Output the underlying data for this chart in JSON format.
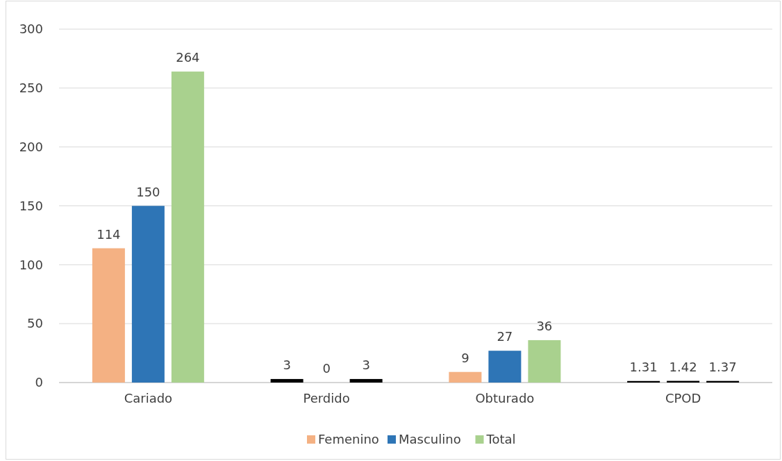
{
  "chart_data": {
    "type": "bar",
    "categories": [
      "Cariado",
      "Perdido",
      "Obturado",
      "CPOD"
    ],
    "series": [
      {
        "name": "Femenino",
        "color": "#f4b183",
        "colors": [
          "#f4b183",
          "#000000",
          "#f4b183",
          "#000000"
        ],
        "values": [
          114,
          3,
          9,
          1.31
        ]
      },
      {
        "name": "Masculino",
        "color": "#2e75b6",
        "colors": [
          "#2e75b6",
          "#000000",
          "#2e75b6",
          "#000000"
        ],
        "values": [
          150,
          0,
          27,
          1.42
        ]
      },
      {
        "name": "Total",
        "color": "#a9d18e",
        "colors": [
          "#a9d18e",
          "#000000",
          "#a9d18e",
          "#000000"
        ],
        "values": [
          264,
          3,
          36,
          1.37
        ]
      }
    ],
    "ylim": [
      0,
      300
    ],
    "yticks": [
      0,
      50,
      100,
      150,
      200,
      250,
      300
    ],
    "grid": "y",
    "data_labels": true,
    "legend": "bottom"
  }
}
